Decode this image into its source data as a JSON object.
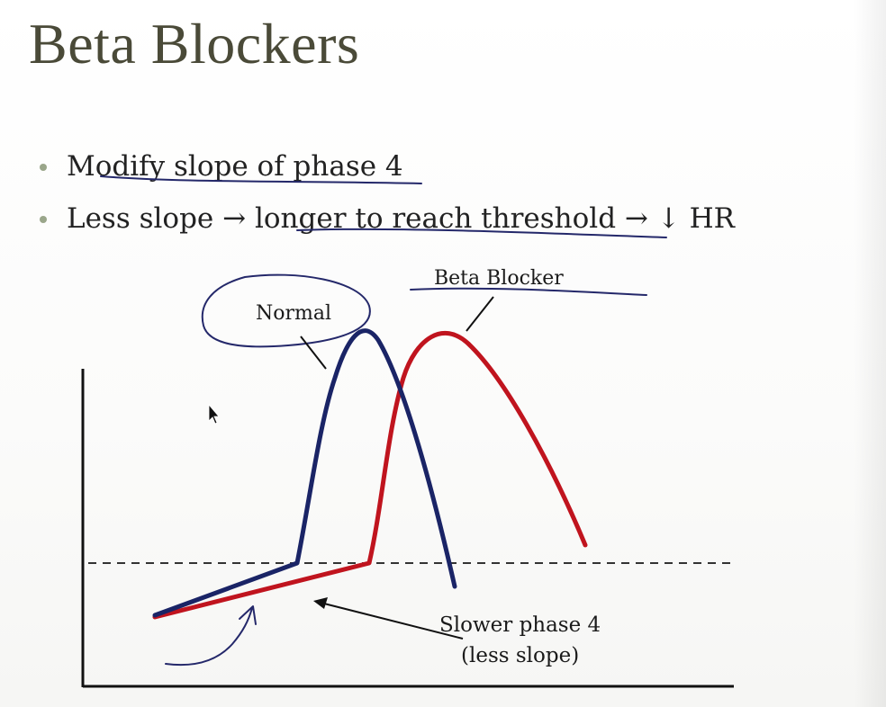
{
  "slide": {
    "title": "Beta Blockers",
    "bullets": [
      "Modify slope of phase 4",
      "Less slope → longer to reach threshold → ↓ HR"
    ],
    "bullet_color": "#9aa68a"
  },
  "diagram": {
    "labels": {
      "normal": "Normal",
      "beta_blocker": "Beta Blocker",
      "slower_line1": "Slower phase 4",
      "slower_line2": "(less slope)"
    },
    "colors": {
      "normal_curve": "#1a2466",
      "beta_blocker_curve": "#c0141e",
      "axes": "#111111",
      "threshold": "#333333",
      "annotation_ink": "#24286a"
    }
  }
}
